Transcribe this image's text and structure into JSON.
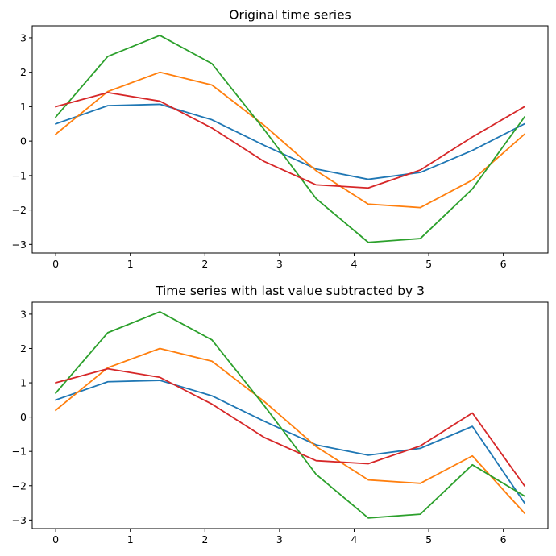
{
  "chart_data": [
    {
      "type": "line",
      "title": "Original time series",
      "xlabel": "",
      "ylabel": "",
      "xlim": [
        -0.3145,
        6.5977
      ],
      "ylim": [
        -3.25,
        3.35
      ],
      "xticks": [
        0,
        1,
        2,
        3,
        4,
        5,
        6
      ],
      "yticks": [
        -3,
        -2,
        -1,
        0,
        1,
        2,
        3
      ],
      "grid": false,
      "legend": "none",
      "x": [
        0,
        0.698,
        1.396,
        2.094,
        2.793,
        3.491,
        4.189,
        4.887,
        5.585,
        6.283
      ],
      "series": [
        {
          "color": "#1f77b4",
          "values": [
            0.5,
            1.03,
            1.07,
            0.62,
            -0.12,
            -0.81,
            -1.11,
            -0.91,
            -0.27,
            0.5
          ]
        },
        {
          "color": "#ff7f0e",
          "values": [
            0.2,
            1.44,
            2.0,
            1.63,
            0.46,
            -0.86,
            -1.83,
            -1.93,
            -1.13,
            0.2
          ]
        },
        {
          "color": "#2ca02c",
          "values": [
            0.7,
            2.46,
            3.07,
            2.25,
            0.34,
            -1.67,
            -2.94,
            -2.83,
            -1.39,
            0.7
          ]
        },
        {
          "color": "#d62728",
          "values": [
            1.0,
            1.41,
            1.16,
            0.38,
            -0.59,
            -1.27,
            -1.36,
            -0.84,
            0.12,
            1.0
          ]
        }
      ]
    },
    {
      "type": "line",
      "title": "Time series with last value subtracted by 3",
      "xlabel": "",
      "ylabel": "",
      "xlim": [
        -0.3145,
        6.5977
      ],
      "ylim": [
        -3.25,
        3.35
      ],
      "xticks": [
        0,
        1,
        2,
        3,
        4,
        5,
        6
      ],
      "yticks": [
        -3,
        -2,
        -1,
        0,
        1,
        2,
        3
      ],
      "grid": false,
      "legend": "none",
      "x": [
        0,
        0.698,
        1.396,
        2.094,
        2.793,
        3.491,
        4.189,
        4.887,
        5.585,
        6.283
      ],
      "series": [
        {
          "color": "#1f77b4",
          "values": [
            0.5,
            1.03,
            1.07,
            0.62,
            -0.12,
            -0.81,
            -1.11,
            -0.91,
            -0.27,
            -2.5
          ]
        },
        {
          "color": "#ff7f0e",
          "values": [
            0.2,
            1.44,
            2.0,
            1.63,
            0.46,
            -0.86,
            -1.83,
            -1.93,
            -1.13,
            -2.8
          ]
        },
        {
          "color": "#2ca02c",
          "values": [
            0.7,
            2.46,
            3.07,
            2.25,
            0.34,
            -1.67,
            -2.94,
            -2.83,
            -1.39,
            -2.3
          ]
        },
        {
          "color": "#d62728",
          "values": [
            1.0,
            1.41,
            1.16,
            0.38,
            -0.59,
            -1.27,
            -1.36,
            -0.84,
            0.12,
            -2.0
          ]
        }
      ]
    }
  ]
}
